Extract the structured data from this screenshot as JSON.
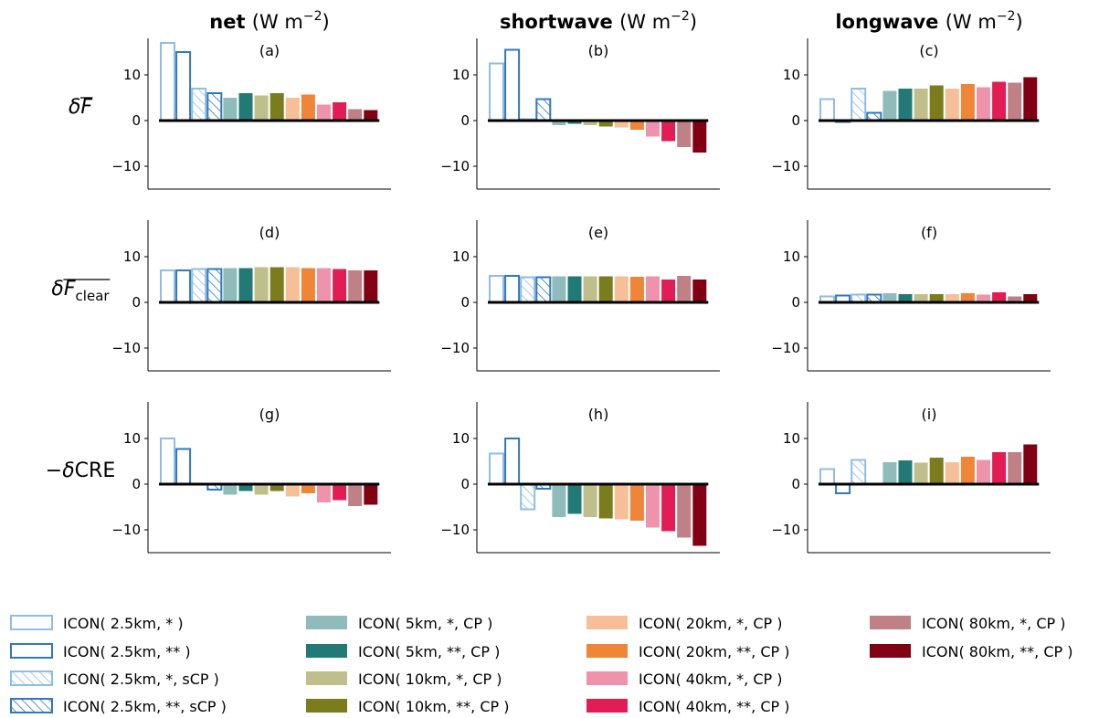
{
  "chart_data": {
    "type": "bar",
    "column_titles": [
      {
        "bold": "net",
        "unit": "(W m",
        "exp": "−2",
        "close": ")"
      },
      {
        "bold": "shortwave",
        "unit": "(W m",
        "exp": "−2",
        "close": ")"
      },
      {
        "bold": "longwave",
        "unit": "(W m",
        "exp": "−2",
        "close": ")"
      }
    ],
    "row_labels": [
      {
        "prefix": "δ",
        "main": "F",
        "sub": "",
        "overline": "F"
      },
      {
        "prefix": "δ",
        "main": "F",
        "sub": "clear",
        "overline": "F_clear"
      },
      {
        "prefix": "−δ",
        "main": "CRE",
        "sub": "",
        "overline": ""
      }
    ],
    "ylim": [
      -15,
      18
    ],
    "yticks": [
      -10,
      0,
      10
    ],
    "ytick_labels": [
      "−10",
      "0",
      "10"
    ],
    "series": [
      {
        "name": "ICON( 2.5km, * )",
        "color": "#8fbde3",
        "style": "outline"
      },
      {
        "name": "ICON( 2.5km, ** )",
        "color": "#2f78bd",
        "style": "outline"
      },
      {
        "name": "ICON( 2.5km, *,  sCP )",
        "color": "#8fbde3",
        "style": "hatch"
      },
      {
        "name": "ICON( 2.5km, **, sCP )",
        "color": "#2f78bd",
        "style": "hatch"
      },
      {
        "name": "ICON( 5km, *,  CP )",
        "color": "#8fbcbb",
        "style": "fill"
      },
      {
        "name": "ICON( 5km, **, CP )",
        "color": "#217a76",
        "style": "fill"
      },
      {
        "name": "ICON( 10km, *,  CP )",
        "color": "#bfbf8b",
        "style": "fill"
      },
      {
        "name": "ICON( 10km, **, CP )",
        "color": "#7b7d1c",
        "style": "fill"
      },
      {
        "name": "ICON( 20km, *,  CP )",
        "color": "#f6bf98",
        "style": "fill"
      },
      {
        "name": "ICON( 20km, **, CP )",
        "color": "#ef8536",
        "style": "fill"
      },
      {
        "name": "ICON( 40km, *,  CP )",
        "color": "#ef92ac",
        "style": "fill"
      },
      {
        "name": "ICON( 40km, **, CP )",
        "color": "#e21d55",
        "style": "fill"
      },
      {
        "name": "ICON( 80km, *,  CP )",
        "color": "#bf8086",
        "style": "fill"
      },
      {
        "name": "ICON( 80km, **, CP )",
        "color": "#820014",
        "style": "fill"
      }
    ],
    "panels": [
      {
        "label": "(a)",
        "values": [
          17.0,
          15.0,
          7.0,
          6.0,
          5.0,
          6.0,
          5.5,
          6.0,
          5.0,
          5.7,
          3.5,
          4.0,
          2.5,
          2.3
        ]
      },
      {
        "label": "(b)",
        "values": [
          12.5,
          15.5,
          0.3,
          4.7,
          -1.0,
          -0.7,
          -1.0,
          -1.3,
          -1.5,
          -2.0,
          -3.5,
          -4.5,
          -5.8,
          -7.0
        ]
      },
      {
        "label": "(c)",
        "values": [
          4.7,
          -0.3,
          7.0,
          1.7,
          6.5,
          7.0,
          7.0,
          7.7,
          7.0,
          8.0,
          7.3,
          8.5,
          8.3,
          9.5
        ]
      },
      {
        "label": "(d)",
        "values": [
          7.0,
          7.0,
          7.3,
          7.3,
          7.5,
          7.5,
          7.7,
          7.7,
          7.7,
          7.5,
          7.5,
          7.3,
          7.0,
          7.0
        ]
      },
      {
        "label": "(e)",
        "values": [
          5.8,
          5.8,
          5.5,
          5.5,
          5.7,
          5.7,
          5.7,
          5.7,
          5.7,
          5.6,
          5.7,
          5.0,
          5.8,
          5.0
        ]
      },
      {
        "label": "(f)",
        "values": [
          1.3,
          1.5,
          1.7,
          1.7,
          2.0,
          1.8,
          1.8,
          1.8,
          1.8,
          2.0,
          1.7,
          2.2,
          1.3,
          1.8
        ]
      },
      {
        "label": "(g)",
        "values": [
          10.0,
          7.7,
          0.0,
          -1.2,
          -2.3,
          -1.5,
          -2.3,
          -1.5,
          -2.7,
          -2.0,
          -4.0,
          -3.5,
          -4.8,
          -4.5
        ]
      },
      {
        "label": "(h)",
        "values": [
          6.7,
          10.0,
          -5.5,
          -1.0,
          -7.2,
          -6.5,
          -7.2,
          -7.5,
          -7.7,
          -8.0,
          -9.5,
          -10.3,
          -11.7,
          -13.5
        ]
      },
      {
        "label": "(i)",
        "values": [
          3.3,
          -2.0,
          5.3,
          0.0,
          4.8,
          5.2,
          4.7,
          5.8,
          4.8,
          6.0,
          5.3,
          7.0,
          7.0,
          8.7
        ]
      }
    ]
  }
}
